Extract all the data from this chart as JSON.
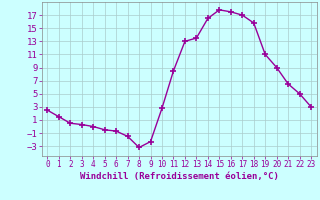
{
  "x": [
    0,
    1,
    2,
    3,
    4,
    5,
    6,
    7,
    8,
    9,
    10,
    11,
    12,
    13,
    14,
    15,
    16,
    17,
    18,
    19,
    20,
    21,
    22,
    23
  ],
  "y": [
    2.5,
    1.5,
    0.5,
    0.3,
    0.0,
    -0.5,
    -0.7,
    -1.5,
    -3.2,
    -2.3,
    2.8,
    8.5,
    13.0,
    13.5,
    16.5,
    17.8,
    17.5,
    17.0,
    15.8,
    11.0,
    9.0,
    6.5,
    5.0,
    3.0
  ],
  "line_color": "#990099",
  "marker": "+",
  "markersize": 4,
  "linewidth": 1.0,
  "background_color": "#ccffff",
  "grid_color": "#aacccc",
  "xlabel": "Windchill (Refroidissement éolien,°C)",
  "xlim": [
    -0.5,
    23.5
  ],
  "ylim": [
    -4.5,
    19
  ],
  "yticks": [
    -3,
    -1,
    1,
    3,
    5,
    7,
    9,
    11,
    13,
    15,
    17
  ],
  "xticks": [
    0,
    1,
    2,
    3,
    4,
    5,
    6,
    7,
    8,
    9,
    10,
    11,
    12,
    13,
    14,
    15,
    16,
    17,
    18,
    19,
    20,
    21,
    22,
    23
  ],
  "tick_color": "#990099",
  "label_color": "#990099",
  "xlabel_fontsize": 6.5,
  "ytick_fontsize": 6.5,
  "xtick_fontsize": 5.5
}
